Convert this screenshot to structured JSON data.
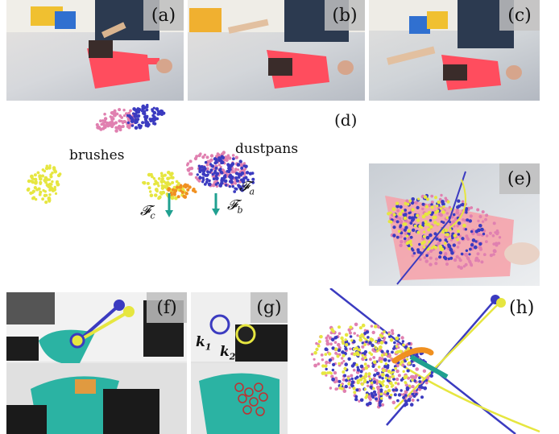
{
  "panels": {
    "a": {
      "label": "(a)"
    },
    "b": {
      "label": "(b)"
    },
    "c": {
      "label": "(c)"
    },
    "d": {
      "label": "(d)",
      "brushes": "brushes",
      "dustpans": "dustpans",
      "frame_a": "𝓕",
      "frame_a_sub": "a",
      "frame_b": "𝓕",
      "frame_b_sub": "b",
      "frame_c": "𝓕",
      "frame_c_sub": "c"
    },
    "e": {
      "label": "(e)"
    },
    "f": {
      "label": "(f)"
    },
    "g": {
      "label": "(g)",
      "k1": "k",
      "k1_sub": "1",
      "k2": "k",
      "k2_sub": "2"
    },
    "h": {
      "label": "(h)"
    }
  },
  "colors": {
    "pink": "#e080b0",
    "blue": "#3b3bc0",
    "yellow": "#e6e640",
    "orange": "#f09020",
    "teal": "#20a090",
    "dustpan_red": "#e8333f",
    "dustpan_teal": "#2bb3a3"
  }
}
